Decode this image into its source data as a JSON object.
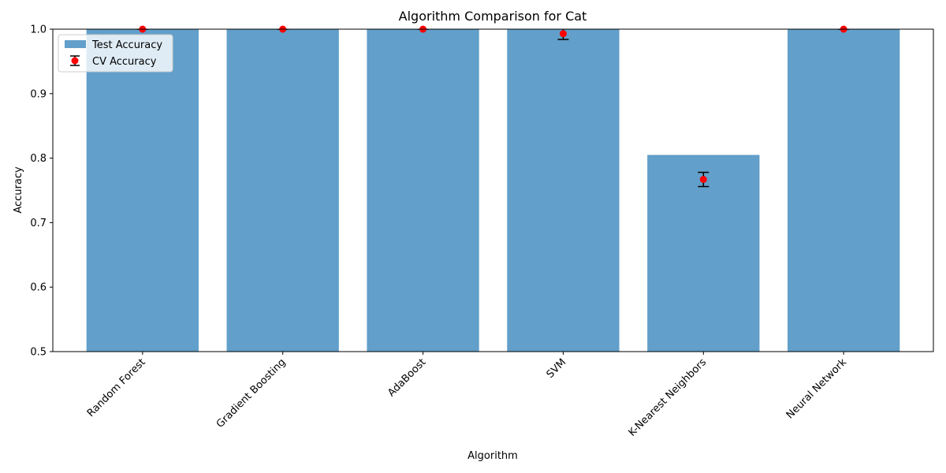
{
  "chart_data": {
    "type": "bar",
    "title": "Algorithm Comparison for Cat",
    "xlabel": "Algorithm",
    "ylabel": "Accuracy",
    "ylim": [
      0.5,
      1.0
    ],
    "yticks": [
      "0.5",
      "0.6",
      "0.7",
      "0.8",
      "0.9",
      "1.0"
    ],
    "categories": [
      "Random Forest",
      "Gradient Boosting",
      "AdaBoost",
      "SVM",
      "K-Nearest Neighbors",
      "Neural Network"
    ],
    "series": [
      {
        "name": "Test Accuracy",
        "kind": "bar",
        "values": [
          1.0,
          1.0,
          1.0,
          1.0,
          0.805,
          1.0
        ]
      },
      {
        "name": "CV Accuracy",
        "kind": "errorbar",
        "values": [
          1.0,
          1.0,
          1.0,
          0.993,
          0.767,
          1.0
        ],
        "errors": [
          0.0,
          0.0,
          0.0,
          0.009,
          0.011,
          0.0
        ]
      }
    ],
    "legend_position": "top-left",
    "grid": false,
    "colors": {
      "bar": "#629fca",
      "point": "#ff0000",
      "errorbar": "#000000"
    }
  }
}
